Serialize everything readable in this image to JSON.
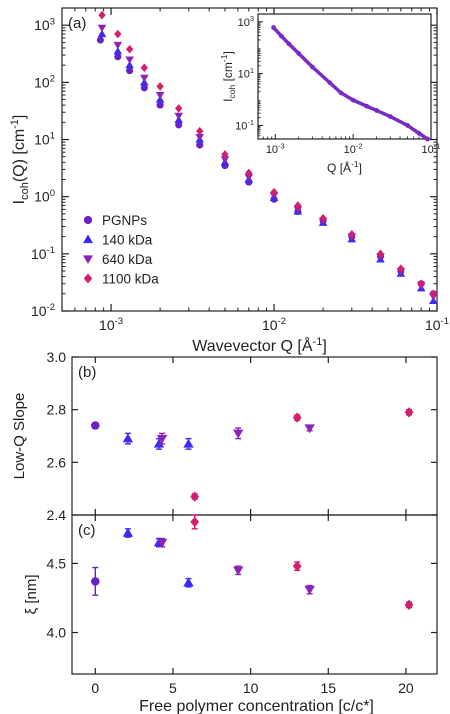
{
  "colors": {
    "PGNPs": "#6a22c4",
    "140 kDa": "#3d2bf0",
    "640 kDa": "#8c24b8",
    "1100 kDa": "#d31f6e",
    "inset": "#7a2bc4"
  },
  "chart_data": [
    {
      "id": "a",
      "panel_label": "(a)",
      "type": "scatter",
      "xscale": "log",
      "yscale": "log",
      "xlim": [
        0.0005,
        0.1
      ],
      "ylim": [
        0.01,
        2000
      ],
      "xticks": [
        0.001,
        0.01,
        0.1
      ],
      "xtick_labels": [
        {
          "b": "10",
          "e": "-3"
        },
        {
          "b": "10",
          "e": "-2"
        },
        {
          "b": "10",
          "e": "-1"
        }
      ],
      "yticks": [
        0.01,
        0.1,
        1,
        10,
        100,
        1000
      ],
      "ytick_labels": [
        {
          "b": "10",
          "e": "-2"
        },
        {
          "b": "10",
          "e": "-1"
        },
        {
          "b": "10",
          "e": "0"
        },
        {
          "b": "10",
          "e": "1"
        },
        {
          "b": "10",
          "e": "2"
        },
        {
          "b": "10",
          "e": "3"
        }
      ],
      "xlabel": {
        "main": "Wavevector Q [Å",
        "sup": "-1",
        "close": "]"
      },
      "ylabel": {
        "pre": "I",
        "sub": "coh",
        "mid": "(Q) [cm",
        "sup": "-1",
        "close": "]"
      },
      "legend": {
        "position": "lower-left",
        "entries": [
          "PGNPs",
          "140 kDa",
          "640 kDa",
          "1100 kDa"
        ]
      },
      "series": [
        {
          "name": "PGNPs",
          "marker": "circle",
          "x": [
            0.00086,
            0.0011,
            0.0013,
            0.0016,
            0.002,
            0.0026,
            0.0035,
            0.005,
            0.007,
            0.01,
            0.014,
            0.02,
            0.03,
            0.045,
            0.06,
            0.08,
            0.095
          ],
          "y": [
            550,
            280,
            160,
            80,
            40,
            18,
            8,
            3.5,
            1.8,
            0.9,
            0.55,
            0.38,
            0.2,
            0.09,
            0.05,
            0.03,
            0.02
          ]
        },
        {
          "name": "140 kDa",
          "marker": "triangle-up",
          "x": [
            0.00088,
            0.0011,
            0.0013,
            0.0016,
            0.002,
            0.0026,
            0.0035,
            0.005,
            0.007,
            0.01,
            0.014,
            0.02,
            0.03,
            0.045,
            0.06,
            0.08,
            0.095
          ],
          "y": [
            700,
            350,
            200,
            100,
            50,
            22,
            10,
            4,
            2,
            0.95,
            0.55,
            0.35,
            0.18,
            0.08,
            0.045,
            0.025,
            0.015
          ]
        },
        {
          "name": "640 kDa",
          "marker": "triangle-down",
          "x": [
            0.00088,
            0.0011,
            0.0013,
            0.0016,
            0.002,
            0.0026,
            0.0035,
            0.005,
            0.007,
            0.01,
            0.014,
            0.02,
            0.03,
            0.045,
            0.06,
            0.08,
            0.095
          ],
          "y": [
            900,
            450,
            250,
            120,
            60,
            26,
            11,
            4.5,
            2.2,
            1.05,
            0.6,
            0.38,
            0.2,
            0.09,
            0.05,
            0.028,
            0.018
          ]
        },
        {
          "name": "1100 kDa",
          "marker": "diamond",
          "x": [
            0.00088,
            0.0011,
            0.0013,
            0.0016,
            0.002,
            0.0026,
            0.0035,
            0.005,
            0.007,
            0.01,
            0.014,
            0.02,
            0.03,
            0.045,
            0.06,
            0.08,
            0.095
          ],
          "y": [
            1500,
            700,
            380,
            180,
            85,
            35,
            14,
            5.5,
            2.6,
            1.2,
            0.7,
            0.42,
            0.22,
            0.1,
            0.055,
            0.03,
            0.02
          ]
        }
      ]
    },
    {
      "id": "a-inset",
      "type": "line",
      "xscale": "log",
      "yscale": "log",
      "xlim": [
        0.0006,
        0.1
      ],
      "ylim": [
        0.03,
        2000
      ],
      "xticks": [
        0.001,
        0.01,
        0.1
      ],
      "xtick_labels": [
        {
          "b": "10",
          "e": "-3"
        },
        {
          "b": "10",
          "e": "-2"
        },
        {
          "b": "10",
          "e": "-1"
        }
      ],
      "yticks": [
        0.1,
        10,
        1000
      ],
      "ytick_labels": [
        {
          "b": "10",
          "e": "-1"
        },
        {
          "b": "10",
          "e": "1"
        },
        {
          "b": "10",
          "e": "3"
        }
      ],
      "xlabel": {
        "main": "Q [Å",
        "sup": "-1",
        "close": "]"
      },
      "ylabel": {
        "pre": "I",
        "sub": "coh",
        "mid": " [cm",
        "sup": "-1",
        "close": "]"
      },
      "series": [
        {
          "x": [
            0.00095,
            0.0012,
            0.0015,
            0.002,
            0.003,
            0.005,
            0.007,
            0.01,
            0.015,
            0.02,
            0.03,
            0.05,
            0.07,
            0.09
          ],
          "y": [
            600,
            280,
            140,
            60,
            18,
            4.5,
            1.8,
            0.95,
            0.55,
            0.38,
            0.22,
            0.1,
            0.05,
            0.03
          ]
        }
      ]
    },
    {
      "id": "b",
      "panel_label": "(b)",
      "type": "scatter",
      "xlim": [
        -1.5,
        22
      ],
      "ylim": [
        2.4,
        3.0
      ],
      "yticks": [
        2.4,
        2.6,
        2.8,
        3.0
      ],
      "ytick_labels": [
        "2.4",
        "2.6",
        "2.8",
        "3.0"
      ],
      "ylabel": "Low-Q Slope",
      "series": [
        {
          "name": "PGNPs",
          "marker": "circle",
          "points": [
            [
              0,
              2.74,
              0.01
            ]
          ]
        },
        {
          "name": "140 kDa",
          "marker": "triangle-up",
          "points": [
            [
              2.1,
              2.69,
              0.02
            ],
            [
              4.1,
              2.67,
              0.02
            ],
            [
              6.0,
              2.67,
              0.02
            ]
          ]
        },
        {
          "name": "640 kDa",
          "marker": "triangle-down",
          "points": [
            [
              4.3,
              2.69,
              0.02
            ],
            [
              9.2,
              2.71,
              0.02
            ],
            [
              13.8,
              2.73,
              0.01
            ]
          ]
        },
        {
          "name": "1100 kDa",
          "marker": "diamond",
          "points": [
            [
              6.4,
              2.47,
              0.01
            ],
            [
              13.0,
              2.77,
              0.01
            ],
            [
              20.2,
              2.79,
              0.01
            ]
          ]
        }
      ]
    },
    {
      "id": "c",
      "panel_label": "(c)",
      "type": "scatter",
      "xlim": [
        -1.5,
        22
      ],
      "ylim": [
        3.7,
        4.85
      ],
      "xticks": [
        0,
        5,
        10,
        15,
        20
      ],
      "xtick_labels": [
        "0",
        "5",
        "10",
        "15",
        "20"
      ],
      "yticks": [
        4.0,
        4.5
      ],
      "ytick_labels": [
        "4.0",
        "4.5"
      ],
      "ylabel": "ξ [nm]",
      "xlabel": "Free polymer concentration [c/c*]",
      "series": [
        {
          "name": "PGNPs",
          "marker": "circle",
          "points": [
            [
              0,
              4.37,
              0.1
            ]
          ]
        },
        {
          "name": "140 kDa",
          "marker": "triangle-up",
          "points": [
            [
              2.1,
              4.72,
              0.03
            ],
            [
              4.1,
              4.65,
              0.03
            ],
            [
              6.0,
              4.36,
              0.03
            ]
          ]
        },
        {
          "name": "640 kDa",
          "marker": "triangle-down",
          "points": [
            [
              4.3,
              4.65,
              0.03
            ],
            [
              9.2,
              4.45,
              0.03
            ],
            [
              13.8,
              4.31,
              0.03
            ]
          ]
        },
        {
          "name": "1100 kDa",
          "marker": "diamond",
          "points": [
            [
              6.4,
              4.8,
              0.05
            ],
            [
              13.0,
              4.48,
              0.03
            ],
            [
              20.2,
              4.2,
              0.02
            ]
          ]
        }
      ]
    }
  ]
}
